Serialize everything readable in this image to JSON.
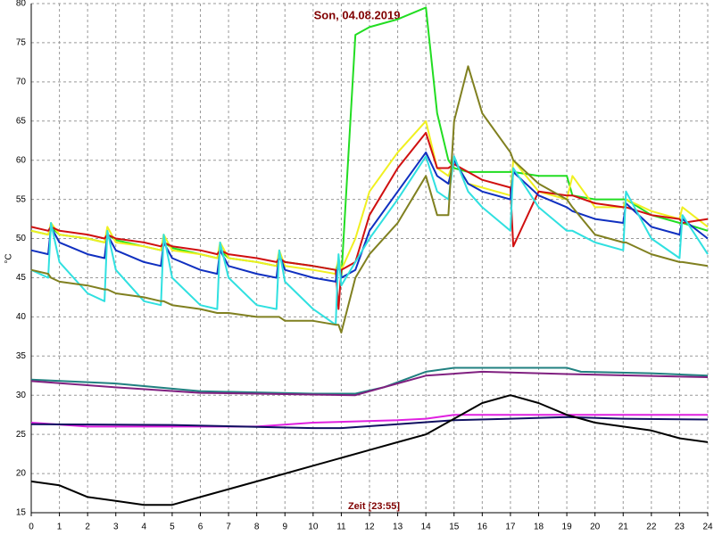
{
  "chart_data": {
    "type": "line",
    "title": "Son, 04.08.2019",
    "xlabel": "Zeit [23:55]",
    "ylabel": "°C",
    "xlim": [
      0,
      24
    ],
    "ylim": [
      15,
      80
    ],
    "xticks": [
      0,
      1,
      2,
      3,
      4,
      5,
      6,
      7,
      8,
      9,
      10,
      11,
      12,
      13,
      14,
      15,
      16,
      17,
      18,
      19,
      20,
      21,
      22,
      23,
      24
    ],
    "yticks": [
      15,
      20,
      25,
      30,
      35,
      40,
      45,
      50,
      55,
      60,
      65,
      70,
      75,
      80
    ],
    "grid": true,
    "x": [
      0,
      0.6,
      0.7,
      1,
      2,
      2.6,
      2.7,
      3,
      4,
      4.6,
      4.7,
      5,
      6,
      6.6,
      6.7,
      7,
      8,
      8.7,
      8.8,
      9,
      10,
      10.8,
      10.9,
      11,
      11.5,
      12,
      13,
      14,
      14.4,
      14.8,
      15,
      15.5,
      16,
      17,
      17.1,
      18,
      19,
      19.2,
      20,
      21,
      21.1,
      22,
      23,
      23.1,
      24
    ],
    "series": [
      {
        "color": "#22dd22",
        "values": [
          51,
          50.5,
          51.5,
          50.5,
          50,
          49.5,
          50.5,
          49.8,
          49,
          48.5,
          49.5,
          48.8,
          48,
          47.5,
          48.5,
          47.5,
          47,
          46.5,
          47.5,
          47,
          46.5,
          46,
          47,
          45,
          76,
          77,
          78,
          79.5,
          66,
          60,
          59,
          58.5,
          58.5,
          58.5,
          58.5,
          58,
          58,
          55.5,
          55,
          55,
          55,
          53,
          52,
          52,
          51
        ]
      },
      {
        "color": "#f0f020",
        "values": [
          51,
          50.5,
          52,
          50.5,
          50,
          49.5,
          51.5,
          49.5,
          49,
          48.5,
          50.5,
          48.5,
          48,
          47.5,
          49.5,
          47.5,
          47,
          46.5,
          48.5,
          46.5,
          46,
          45.5,
          47.5,
          46,
          50,
          56,
          61,
          65,
          59,
          58,
          60,
          57,
          56.5,
          55.5,
          60,
          56,
          55,
          58,
          54,
          54,
          55,
          53.5,
          52.5,
          54,
          51.5
        ]
      },
      {
        "color": "#d01010",
        "values": [
          51.5,
          51,
          51.5,
          51,
          50.5,
          50,
          50.5,
          50,
          49.5,
          49,
          49.5,
          49,
          48.5,
          48,
          48.5,
          48,
          47.5,
          47,
          47.5,
          47,
          46.5,
          46,
          41,
          46,
          47,
          53,
          59,
          63.5,
          59,
          59,
          59.5,
          58.5,
          57.5,
          56.5,
          49,
          56,
          55.5,
          55.5,
          54.5,
          54,
          54,
          53,
          52.5,
          52,
          52.5
        ]
      },
      {
        "color": "#1030c0",
        "values": [
          48.5,
          48,
          51.5,
          49.5,
          48,
          47.5,
          50.5,
          48.5,
          47,
          46.5,
          49.5,
          47.5,
          46,
          45.5,
          48.5,
          46.5,
          45.5,
          45,
          48,
          46,
          45,
          44.5,
          47,
          45,
          46,
          51,
          56,
          61,
          58,
          57,
          60,
          57,
          56,
          55,
          58.5,
          55.5,
          54,
          53.5,
          52.5,
          52,
          54.5,
          51.5,
          50.5,
          52.5,
          50
        ]
      },
      {
        "color": "#30e0e0",
        "values": [
          46,
          45,
          52,
          47,
          43,
          42,
          51,
          46,
          42,
          41.5,
          50.5,
          45,
          41.5,
          41,
          49.5,
          45,
          41.5,
          41,
          48.5,
          44.5,
          41,
          39,
          48,
          44,
          47,
          50,
          55,
          60.5,
          56,
          55,
          60.5,
          56,
          54,
          51,
          59,
          54,
          51,
          51,
          49.5,
          48.5,
          56,
          50,
          47.5,
          53,
          48
        ]
      },
      {
        "color": "#808020",
        "values": [
          46,
          45.5,
          45,
          44.5,
          44,
          43.5,
          43.5,
          43,
          42.5,
          42,
          42,
          41.5,
          41,
          40.5,
          40.5,
          40.5,
          40,
          40,
          40,
          39.5,
          39.5,
          39,
          39,
          38,
          45,
          48,
          52,
          58,
          53,
          53,
          65,
          72,
          66,
          61,
          60,
          57,
          55,
          54,
          50.5,
          49.5,
          49.5,
          48,
          47,
          47,
          46.5
        ]
      },
      {
        "color": "#208080",
        "x": [
          0,
          3,
          6,
          10,
          11.5,
          12.5,
          14,
          15,
          19,
          19.5,
          22,
          24
        ],
        "values": [
          32,
          31.5,
          30.5,
          30.2,
          30.2,
          31,
          33,
          33.5,
          33.5,
          33,
          32.8,
          32.5
        ]
      },
      {
        "color": "#802080",
        "x": [
          0,
          3,
          6,
          11.5,
          12.5,
          14,
          16,
          19,
          24
        ],
        "values": [
          31.8,
          31,
          30.3,
          30,
          31,
          32.5,
          33,
          32.7,
          32.3
        ]
      },
      {
        "color": "#e020e0",
        "x": [
          0,
          2,
          8,
          10,
          13,
          14,
          15,
          24
        ],
        "values": [
          26.5,
          26,
          26,
          26.5,
          26.8,
          27,
          27.5,
          27.5
        ]
      },
      {
        "color": "#101060",
        "x": [
          0,
          5,
          10,
          11,
          13,
          15,
          17,
          19,
          21,
          24
        ],
        "values": [
          26.3,
          26.2,
          25.8,
          25.8,
          26.3,
          26.8,
          27,
          27.2,
          27,
          26.9
        ]
      },
      {
        "color": "#000000",
        "x": [
          0,
          1,
          2,
          3,
          4,
          5,
          6,
          7,
          8,
          9,
          10,
          11,
          12,
          13,
          14,
          15,
          16,
          17,
          18,
          19,
          20,
          21,
          22,
          23,
          24
        ],
        "values": [
          19,
          18.5,
          17,
          16.5,
          16,
          16,
          17,
          18,
          19,
          20,
          21,
          22,
          23,
          24,
          25,
          27,
          29,
          30,
          29,
          27.5,
          26.5,
          26,
          25.5,
          24.5,
          24
        ]
      }
    ]
  }
}
